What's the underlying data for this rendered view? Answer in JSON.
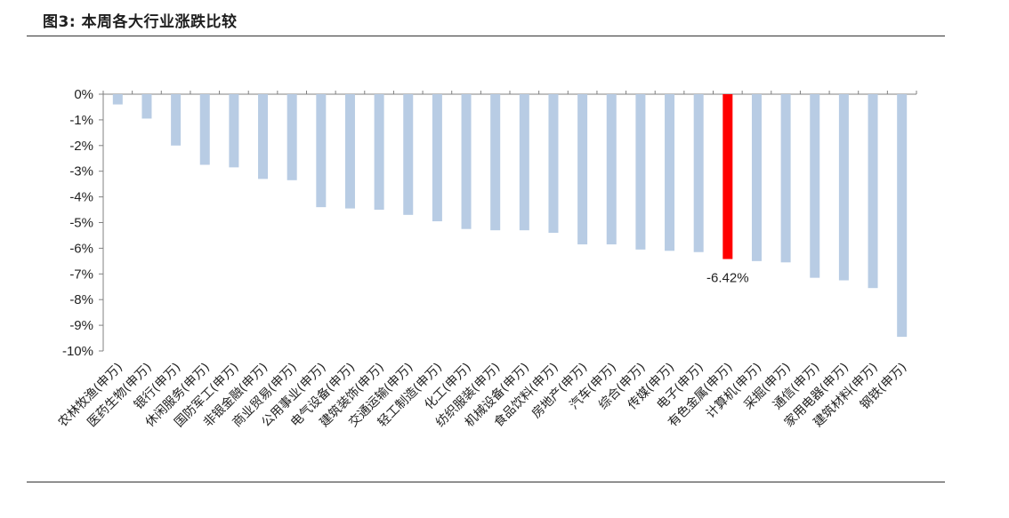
{
  "header": {
    "title": "图3:  本周各大行业涨跌比较"
  },
  "colors": {
    "bar": "#b8cce4",
    "highlight": "#ff0000",
    "axis": "#808080"
  },
  "chart_data": {
    "type": "bar",
    "title": "",
    "xlabel": "",
    "ylabel": "",
    "ylim": [
      -10,
      0
    ],
    "yticks": [
      "0%",
      "-1%",
      "-2%",
      "-3%",
      "-4%",
      "-5%",
      "-6%",
      "-7%",
      "-8%",
      "-9%",
      "-10%"
    ],
    "grid": false,
    "highlight_index": 21,
    "highlight_label": "-6.42%",
    "categories": [
      "农林牧渔(申万)",
      "医药生物(申万)",
      "银行(申万)",
      "休闲服务(申万)",
      "国防军工(申万)",
      "非银金融(申万)",
      "商业贸易(申万)",
      "公用事业(申万)",
      "电气设备(申万)",
      "建筑装饰(申万)",
      "交通运输(申万)",
      "轻工制造(申万)",
      "化工(申万)",
      "纺织服装(申万)",
      "机械设备(申万)",
      "食品饮料(申万)",
      "房地产(申万)",
      "汽车(申万)",
      "综合(申万)",
      "传媒(申万)",
      "电子(申万)",
      "有色金属(申万)",
      "计算机(申万)",
      "采掘(申万)",
      "通信(申万)",
      "家用电器(申万)",
      "建筑材料(申万)",
      "钢铁(申万)"
    ],
    "values": [
      -0.4,
      -0.95,
      -2.0,
      -2.75,
      -2.85,
      -3.3,
      -3.35,
      -4.4,
      -4.45,
      -4.5,
      -4.7,
      -4.95,
      -5.25,
      -5.3,
      -5.3,
      -5.4,
      -5.85,
      -5.85,
      -6.05,
      -6.1,
      -6.15,
      -6.42,
      -6.5,
      -6.55,
      -7.15,
      -7.25,
      -7.55,
      -9.45
    ]
  }
}
